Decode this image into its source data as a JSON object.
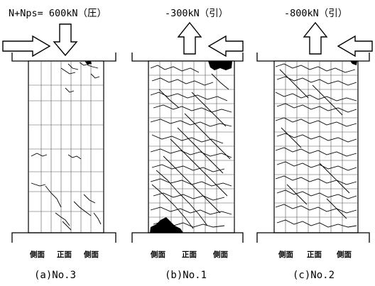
{
  "panels": [
    {
      "id": "a",
      "load_label": "N+Nps= 600kN（圧）",
      "direction": "compression",
      "face_labels": [
        "側面",
        "正面",
        "側面"
      ],
      "caption": "(a)No.3",
      "crack_density": "low"
    },
    {
      "id": "b",
      "load_label": "-300kN（引）",
      "direction": "tension",
      "face_labels": [
        "側面",
        "正面",
        "側面"
      ],
      "caption": "(b)No.1",
      "crack_density": "high"
    },
    {
      "id": "c",
      "load_label": "-800kN（引）",
      "direction": "tension",
      "face_labels": [
        "側面",
        "正面",
        "側面"
      ],
      "caption": "(c)No.2",
      "crack_density": "high"
    }
  ],
  "colors": {
    "ink": "#000000",
    "grid": "#333333",
    "background": "#ffffff"
  }
}
